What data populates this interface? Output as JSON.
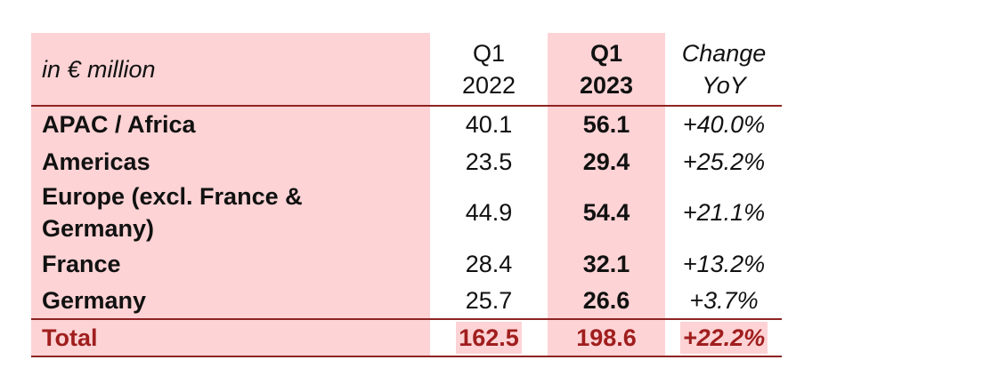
{
  "table": {
    "header": {
      "unit": "in € million",
      "columns": [
        [
          "Q1",
          "2022"
        ],
        [
          "Q1",
          "2023"
        ],
        [
          "Change",
          "YoY"
        ]
      ]
    },
    "rows": [
      [
        "APAC / Africa",
        "40.1",
        "56.1",
        "+40.0%"
      ],
      [
        "Americas",
        "23.5",
        "29.4",
        "+25.2%"
      ],
      [
        "Europe (excl. France & Germany)",
        "44.9",
        "54.4",
        "+21.1%"
      ],
      [
        "France",
        "28.4",
        "32.1",
        "+13.2%"
      ],
      [
        "Germany",
        "25.7",
        "26.6",
        "+3.7%"
      ]
    ],
    "total": [
      "Total",
      "162.5",
      "198.6",
      "+22.2%"
    ]
  }
}
